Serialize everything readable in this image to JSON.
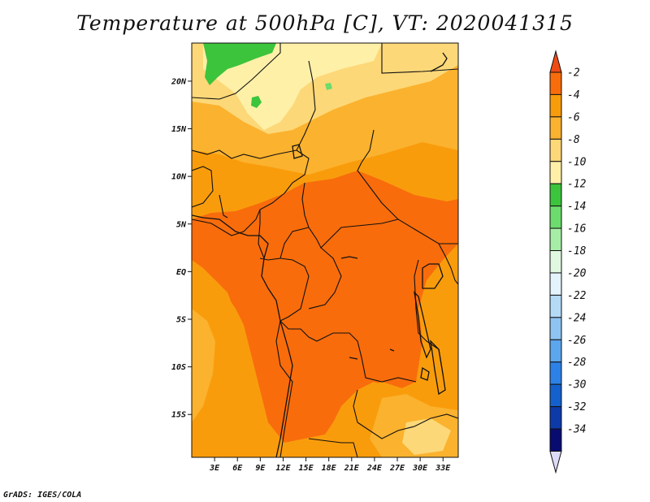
{
  "title": "Temperature at 500hPa [C], VT: 2020041315",
  "credit": "GrADS: IGES/COLA",
  "map": {
    "lon_range": [
      0,
      35
    ],
    "lat_range": [
      -19.5,
      24
    ],
    "lat_ticks": [
      "20N",
      "15N",
      "10N",
      "5N",
      "EQ",
      "5S",
      "10S",
      "15S"
    ],
    "lat_tick_values": [
      20,
      15,
      10,
      5,
      0,
      -5,
      -10,
      -15
    ],
    "lon_ticks": [
      "3E",
      "6E",
      "9E",
      "12E",
      "15E",
      "18E",
      "21E",
      "24E",
      "27E",
      "30E",
      "33E"
    ],
    "lon_tick_values": [
      3,
      6,
      9,
      12,
      15,
      18,
      21,
      24,
      27,
      30,
      33
    ]
  },
  "colorbar": {
    "labels": [
      "-2",
      "-4",
      "-6",
      "-8",
      "-10",
      "-12",
      "-14",
      "-16",
      "-18",
      "-20",
      "-22",
      "-24",
      "-26",
      "-28",
      "-30",
      "-32",
      "-34"
    ],
    "colors": [
      "#f04a14",
      "#f86c0c",
      "#f99c0c",
      "#fbb22e",
      "#fdd878",
      "#fff0a8",
      "#3cc43c",
      "#6cdc6c",
      "#a6eea6",
      "#e0f8e0",
      "#e4f4fc",
      "#b4daf6",
      "#8ec4f2",
      "#5ca6ee",
      "#2c82e6",
      "#1460cc",
      "#0c3aa8",
      "#080c70",
      "#dcdcf8"
    ]
  }
}
